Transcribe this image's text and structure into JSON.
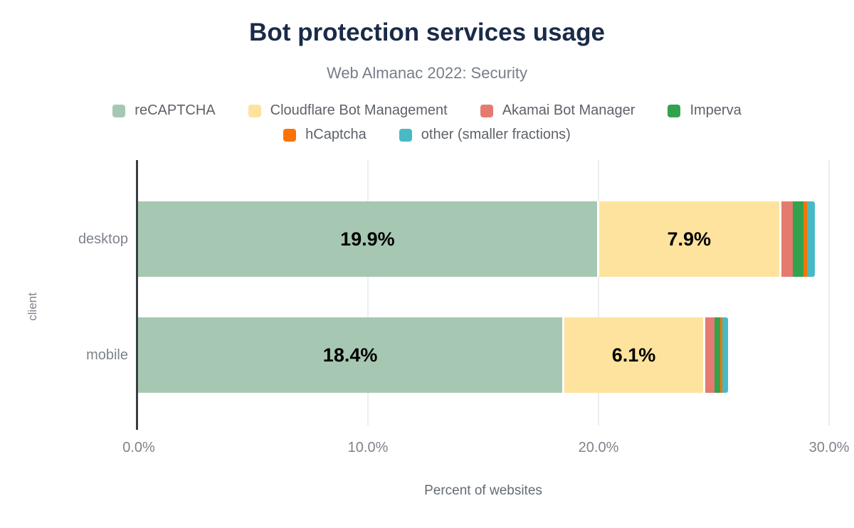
{
  "header": {
    "title": "Bot protection services usage",
    "subtitle": "Web Almanac 2022: Security"
  },
  "chart_data": {
    "type": "bar",
    "orientation": "horizontal-stacked",
    "categories": [
      "desktop",
      "mobile"
    ],
    "series": [
      {
        "name": "reCAPTCHA",
        "color": "#a6c8b3",
        "values": [
          19.9,
          18.4
        ],
        "labels": [
          "19.9%",
          "18.4%"
        ]
      },
      {
        "name": "Cloudflare Bot Management",
        "color": "#fde39d",
        "values": [
          7.9,
          6.1
        ],
        "labels": [
          "7.9%",
          "6.1%"
        ]
      },
      {
        "name": "Akamai Bot Manager",
        "color": "#e57b70",
        "values": [
          0.6,
          0.5
        ],
        "labels": [
          "",
          ""
        ]
      },
      {
        "name": "Imperva",
        "color": "#34a24c",
        "values": [
          0.45,
          0.25
        ],
        "labels": [
          "",
          ""
        ]
      },
      {
        "name": "hCaptcha",
        "color": "#f97405",
        "values": [
          0.15,
          0.1
        ],
        "labels": [
          "",
          ""
        ]
      },
      {
        "name": "other (smaller fractions)",
        "color": "#47bac6",
        "values": [
          0.35,
          0.25
        ],
        "labels": [
          "",
          ""
        ]
      }
    ],
    "xlabel": "Percent of websites",
    "ylabel": "client",
    "xlim": [
      0,
      30
    ],
    "xticks": [
      "0.0%",
      "10.0%",
      "20.0%",
      "30.0%"
    ],
    "grid": "vertical",
    "legend_position": "top",
    "value_label_color": "#000000",
    "title_color": "#1a2b49"
  }
}
